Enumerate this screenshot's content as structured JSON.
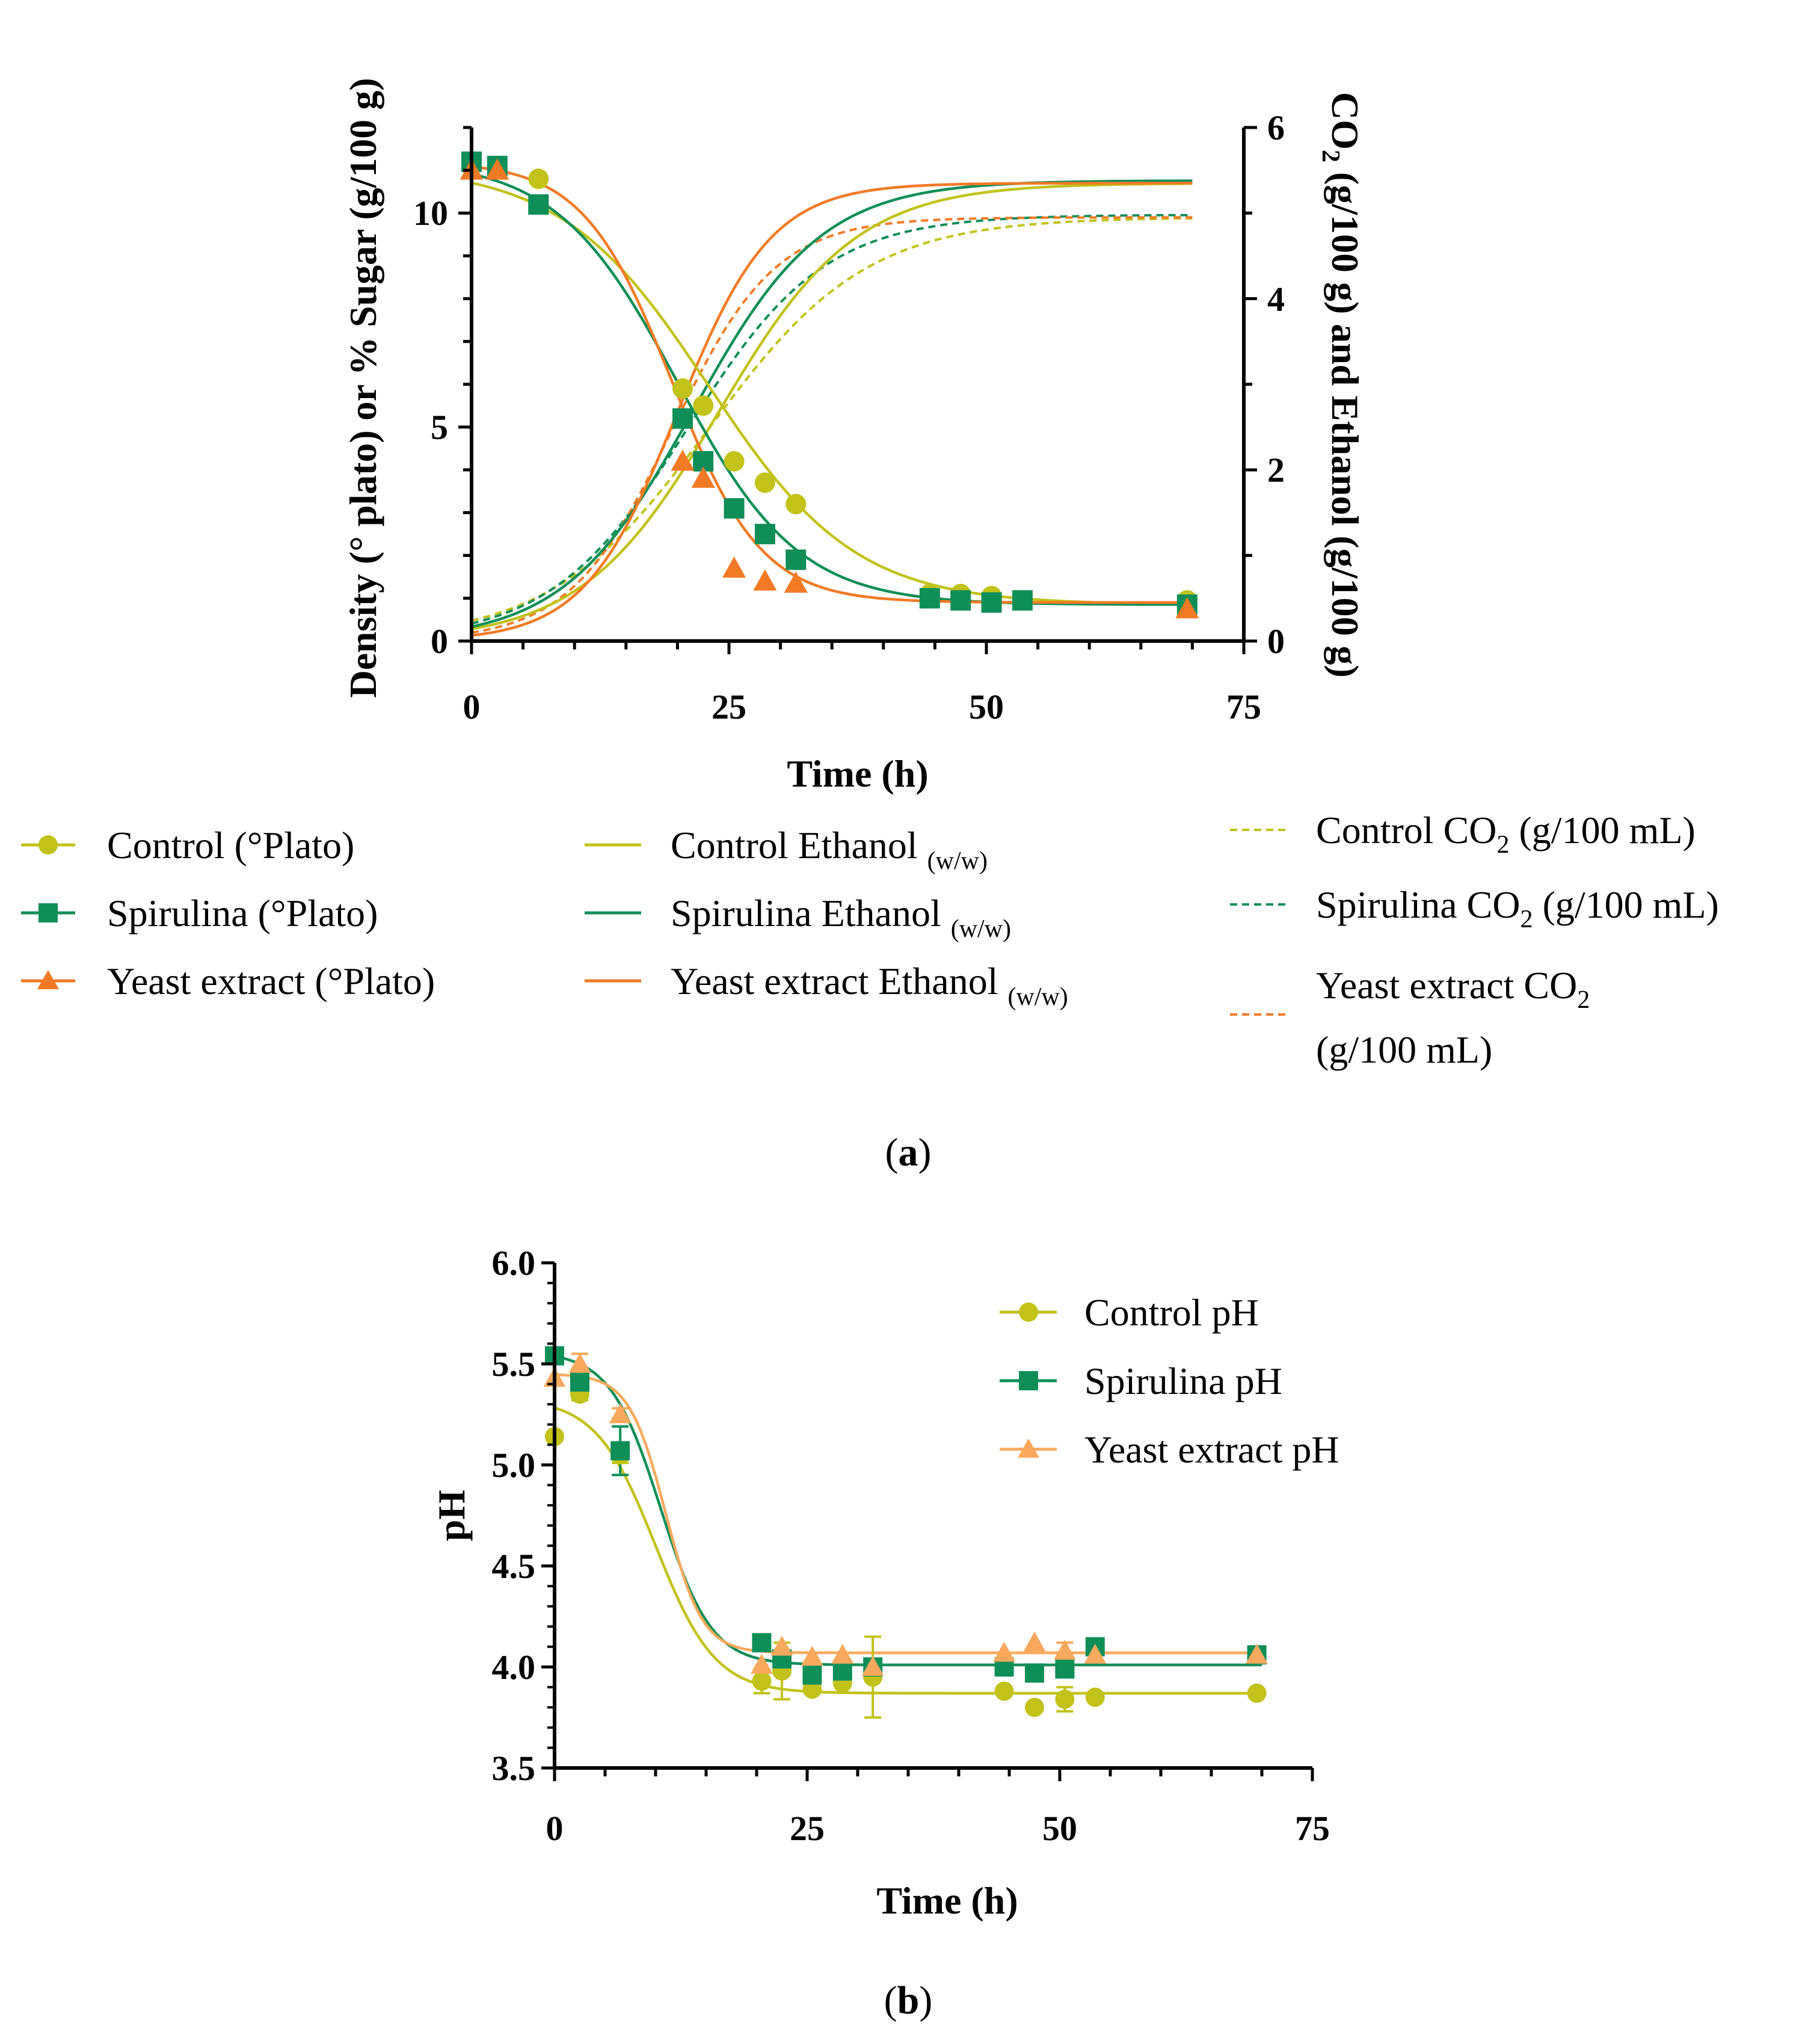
{
  "colors": {
    "control": "#c2c21a",
    "spirulina": "#0f8f58",
    "yeast": "#f27a24",
    "yeast_light": "#f9a95c"
  },
  "chart_data": [
    {
      "id": "a",
      "type": "line",
      "panel_label": "a",
      "xlabel": "Time (h)",
      "ylabel_left": "Density (° plato) or % Sugar (g/100 g)",
      "ylabel_right_parts": [
        "CO",
        "2",
        " (g/100 g) and Ethanol (g/100 g)"
      ],
      "xlim": [
        0,
        75
      ],
      "ylim_left": [
        0,
        12
      ],
      "ylim_right": [
        0,
        6
      ],
      "x_ticks": [
        0,
        25,
        50,
        75
      ],
      "x_tick_labels": [
        "0",
        "25",
        "50",
        "75"
      ],
      "y_ticks_left": [
        0,
        5,
        10
      ],
      "y_tick_labels_left": [
        "0",
        "5",
        "10"
      ],
      "y_ticks_right": [
        0,
        2,
        4,
        6
      ],
      "y_tick_labels_right": [
        "0",
        "2",
        "4",
        "6"
      ],
      "scatter_series": [
        {
          "key": "control",
          "name": "Control (°Plato)",
          "marker": "circle",
          "x": [
            0,
            2.5,
            6.5,
            20.5,
            22.5,
            25.5,
            28.5,
            31.5,
            44.5,
            47.5,
            50.5,
            53.5,
            69.5
          ],
          "y": [
            11.1,
            11.1,
            10.8,
            5.9,
            5.5,
            4.2,
            3.7,
            3.2,
            1.1,
            1.1,
            1.05,
            0.95,
            0.95
          ]
        },
        {
          "key": "spirulina",
          "name": "Spirulina (°Plato)",
          "marker": "square",
          "x": [
            0,
            2.5,
            6.5,
            20.5,
            22.5,
            25.5,
            28.5,
            31.5,
            44.5,
            47.5,
            50.5,
            53.5,
            69.5
          ],
          "y": [
            11.2,
            11.1,
            10.2,
            5.2,
            4.2,
            3.1,
            2.5,
            1.9,
            1.0,
            0.95,
            0.9,
            0.95,
            0.85
          ]
        },
        {
          "key": "yeast",
          "name": "Yeast extract (°Plato)",
          "marker": "triangle",
          "x": [
            0,
            2.5,
            20.5,
            22.5,
            25.5,
            28.5,
            31.5,
            69.5
          ],
          "y": [
            11.0,
            11.0,
            4.2,
            3.8,
            1.7,
            1.4,
            1.35,
            0.75
          ]
        }
      ],
      "sugar_fit_curves": [
        {
          "key": "control",
          "top": 11.1,
          "bottom": 0.85,
          "x50": 23,
          "k": 0.14
        },
        {
          "key": "spirulina",
          "top": 11.25,
          "bottom": 0.85,
          "x50": 20,
          "k": 0.17
        },
        {
          "key": "yeast",
          "top": 11.2,
          "bottom": 0.9,
          "x50": 19.5,
          "k": 0.23
        }
      ],
      "ethanol_series": [
        {
          "key": "control",
          "name": "Control Ethanol",
          "sub": "(w/w)",
          "max": 5.35,
          "x50": 24,
          "k": 0.15
        },
        {
          "key": "spirulina",
          "name": "Spirulina Ethanol",
          "sub": "(w/w)",
          "max": 5.38,
          "x50": 21.5,
          "k": 0.16
        },
        {
          "key": "yeast",
          "name": "Yeast extract Ethanol",
          "sub": "(w/w)",
          "max": 5.35,
          "x50": 20,
          "k": 0.22
        }
      ],
      "co2_series": [
        {
          "key": "control",
          "name_prefix": "Control CO",
          "name_suffix": "(g/100 mL)",
          "max": 4.95,
          "x50": 23,
          "k": 0.13
        },
        {
          "key": "spirulina",
          "name_prefix": "Spirulina  CO",
          "name_suffix": "(g/100 mL)",
          "max": 4.98,
          "x50": 21,
          "k": 0.15
        },
        {
          "key": "yeast",
          "name_prefix": "Yeast extract  CO",
          "name_suffix": "(g/100 mL)",
          "max": 4.95,
          "x50": 19.5,
          "k": 0.2
        }
      ]
    },
    {
      "id": "b",
      "type": "line",
      "panel_label": "b",
      "xlabel": "Time (h)",
      "ylabel": "pH",
      "xlim": [
        0,
        75
      ],
      "ylim": [
        3.5,
        6.0
      ],
      "x_ticks": [
        0,
        25,
        50,
        75
      ],
      "x_tick_labels": [
        "0",
        "25",
        "50",
        "75"
      ],
      "y_ticks": [
        3.5,
        4.0,
        4.5,
        5.0,
        5.5,
        6.0
      ],
      "y_tick_labels": [
        "3.5",
        "4.0",
        "4.5",
        "5.0",
        "5.5",
        "6.0"
      ],
      "series": [
        {
          "key": "control",
          "name": "Control pH",
          "marker": "circle",
          "x": [
            0,
            2.5,
            6.5,
            20.5,
            22.5,
            25.5,
            28.5,
            31.5,
            44.5,
            47.5,
            50.5,
            53.5,
            69.5
          ],
          "y": [
            5.14,
            5.35,
            5.05,
            3.93,
            3.98,
            3.89,
            3.92,
            3.95,
            3.88,
            3.8,
            3.84,
            3.85,
            3.87
          ],
          "err": [
            0,
            0.03,
            0.04,
            0.06,
            0.14,
            0.02,
            0.02,
            0.2,
            0.02,
            0.02,
            0.06,
            0.02,
            0.02
          ],
          "fit": {
            "top": 5.33,
            "bottom": 3.87,
            "x50": 10,
            "k": 0.34
          }
        },
        {
          "key": "spirulina",
          "name": "Spirulina pH",
          "marker": "square",
          "x": [
            0,
            2.5,
            6.5,
            20.5,
            22.5,
            25.5,
            28.5,
            31.5,
            44.5,
            47.5,
            50.5,
            53.5,
            69.5
          ],
          "y": [
            5.54,
            5.41,
            5.07,
            4.12,
            4.04,
            3.96,
            3.98,
            4.0,
            4.0,
            3.97,
            3.99,
            4.1,
            4.06
          ],
          "err": [
            0.02,
            0.02,
            0.12,
            0.02,
            0.02,
            0.02,
            0.02,
            0.03,
            0.02,
            0.02,
            0.02,
            0.02,
            0.02
          ],
          "fit": {
            "top": 5.56,
            "bottom": 4.01,
            "x50": 10.5,
            "k": 0.4
          }
        },
        {
          "key": "yeast",
          "name": "Yeast extract pH",
          "marker": "triangle",
          "x": [
            0,
            2.5,
            6.5,
            20.5,
            22.5,
            25.5,
            28.5,
            31.5,
            44.5,
            47.5,
            50.5,
            53.5,
            69.5
          ],
          "y": [
            5.43,
            5.5,
            5.25,
            4.01,
            4.1,
            4.05,
            4.06,
            4.0,
            4.07,
            4.12,
            4.08,
            4.06,
            4.06
          ],
          "err": [
            0.02,
            0.05,
            0.03,
            0.02,
            0.02,
            0.02,
            0.02,
            0.02,
            0.02,
            0.02,
            0.04,
            0.02,
            0.02
          ],
          "fit": {
            "top": 5.45,
            "bottom": 4.07,
            "x50": 11,
            "k": 0.55
          }
        }
      ]
    }
  ]
}
